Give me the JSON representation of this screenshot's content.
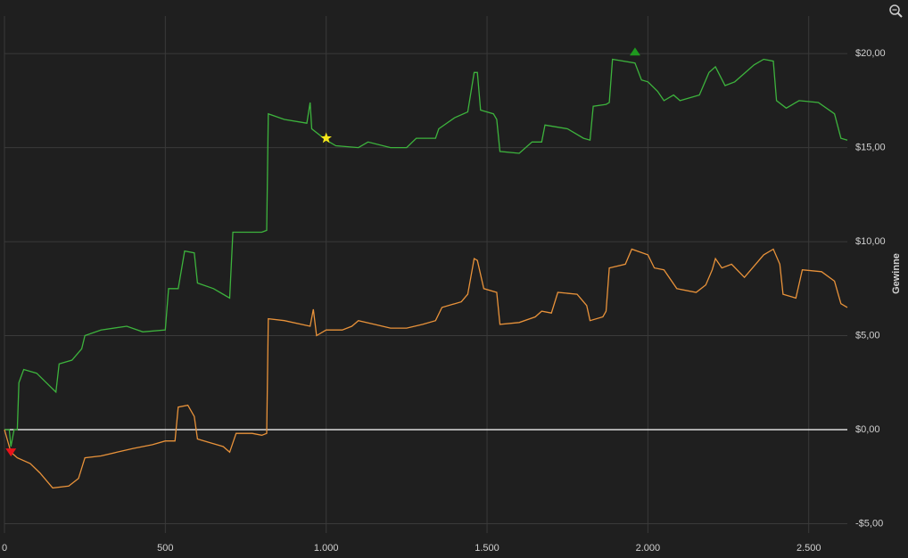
{
  "chart_data": {
    "type": "line",
    "y_label": "Gewinne",
    "xlim": [
      0,
      2620
    ],
    "xticks": [
      0,
      500,
      {
        "value": 1000,
        "label": "1.000"
      },
      {
        "value": 1500,
        "label": "1.500"
      },
      {
        "value": 2000,
        "label": "2.000"
      },
      {
        "value": 2500,
        "label": "2.500"
      }
    ],
    "ylim": [
      -5.5,
      22.0
    ],
    "yticks": [
      {
        "value": -5,
        "label": "-$5,00"
      },
      {
        "value": 0,
        "label": "$0,00"
      },
      {
        "value": 5,
        "label": "$5,00"
      },
      {
        "value": 10,
        "label": "$10,00"
      },
      {
        "value": 15,
        "label": "$15,00"
      },
      {
        "value": 20,
        "label": "$20,00"
      }
    ],
    "grid": true,
    "zero_line_color": "#ffffff",
    "series": [
      {
        "color": "#3db33d",
        "x": [
          0,
          15,
          20,
          30,
          40,
          45,
          60,
          100,
          130,
          160,
          170,
          210,
          240,
          250,
          300,
          380,
          430,
          500,
          510,
          540,
          560,
          590,
          600,
          650,
          700,
          710,
          800,
          815,
          820,
          870,
          940,
          950,
          955,
          1000,
          1030,
          1100,
          1130,
          1200,
          1250,
          1280,
          1340,
          1350,
          1400,
          1440,
          1460,
          1470,
          1480,
          1520,
          1530,
          1540,
          1600,
          1640,
          1670,
          1680,
          1750,
          1800,
          1820,
          1830,
          1870,
          1880,
          1890,
          1960,
          1980,
          2000,
          2030,
          2050,
          2080,
          2100,
          2160,
          2190,
          2210,
          2240,
          2270,
          2330,
          2360,
          2390,
          2400,
          2430,
          2470,
          2530,
          2580,
          2600,
          2620
        ],
        "values": [
          0,
          0,
          -0.9,
          0,
          0,
          2.5,
          3.2,
          3.0,
          2.5,
          2.0,
          3.5,
          3.7,
          4.3,
          5.0,
          5.3,
          5.5,
          5.2,
          5.3,
          7.5,
          7.5,
          9.5,
          9.4,
          7.8,
          7.5,
          7.0,
          10.5,
          10.5,
          10.6,
          16.8,
          16.5,
          16.3,
          17.4,
          16.0,
          15.4,
          15.1,
          15.0,
          15.3,
          15.0,
          15.0,
          15.5,
          15.5,
          16.0,
          16.6,
          16.9,
          19.0,
          19.0,
          17.0,
          16.8,
          16.5,
          14.8,
          14.7,
          15.3,
          15.3,
          16.2,
          16.0,
          15.5,
          15.4,
          17.2,
          17.3,
          17.4,
          19.7,
          19.5,
          18.6,
          18.5,
          18.0,
          17.5,
          17.8,
          17.5,
          17.8,
          19.0,
          19.3,
          18.3,
          18.5,
          19.4,
          19.7,
          19.6,
          17.5,
          17.1,
          17.5,
          17.4,
          16.8,
          15.5,
          15.4
        ]
      },
      {
        "color": "#e8923a",
        "x": [
          0,
          20,
          40,
          80,
          110,
          150,
          200,
          230,
          250,
          300,
          350,
          400,
          460,
          500,
          530,
          540,
          570,
          590,
          600,
          640,
          680,
          700,
          720,
          770,
          800,
          815,
          820,
          870,
          950,
          960,
          970,
          1000,
          1050,
          1080,
          1100,
          1150,
          1200,
          1250,
          1300,
          1340,
          1360,
          1420,
          1440,
          1460,
          1470,
          1490,
          1530,
          1540,
          1600,
          1650,
          1670,
          1700,
          1720,
          1780,
          1800,
          1810,
          1820,
          1860,
          1870,
          1880,
          1930,
          1950,
          2000,
          2020,
          2050,
          2090,
          2150,
          2180,
          2200,
          2210,
          2230,
          2260,
          2300,
          2340,
          2360,
          2390,
          2410,
          2420,
          2460,
          2480,
          2540,
          2580,
          2600,
          2620
        ],
        "values": [
          0,
          -1.2,
          -1.5,
          -1.8,
          -2.3,
          -3.1,
          -3.0,
          -2.6,
          -1.5,
          -1.4,
          -1.2,
          -1.0,
          -0.8,
          -0.6,
          -0.6,
          1.2,
          1.3,
          0.7,
          -0.5,
          -0.7,
          -0.9,
          -1.2,
          -0.2,
          -0.2,
          -0.3,
          -0.2,
          5.9,
          5.8,
          5.5,
          6.4,
          5.0,
          5.3,
          5.3,
          5.5,
          5.8,
          5.6,
          5.4,
          5.4,
          5.6,
          5.8,
          6.5,
          6.8,
          7.2,
          9.1,
          9.0,
          7.5,
          7.3,
          5.6,
          5.7,
          6.0,
          6.3,
          6.2,
          7.3,
          7.2,
          6.8,
          6.6,
          5.8,
          6.0,
          6.3,
          8.6,
          8.8,
          9.6,
          9.3,
          8.6,
          8.5,
          7.5,
          7.3,
          7.7,
          8.5,
          9.1,
          8.6,
          8.8,
          8.1,
          8.9,
          9.3,
          9.6,
          8.8,
          7.2,
          7.0,
          8.5,
          8.4,
          7.9,
          6.7,
          6.5
        ]
      }
    ],
    "markers": [
      {
        "x": 20,
        "y": -1.2,
        "color": "#e8121a",
        "symbol": "triangle-down"
      },
      {
        "x": 1000,
        "y": 15.5,
        "color": "#f5e61a",
        "symbol": "star"
      },
      {
        "x": 1960,
        "y": 20.1,
        "color": "#1f9a1f",
        "symbol": "triangle-up"
      }
    ]
  }
}
